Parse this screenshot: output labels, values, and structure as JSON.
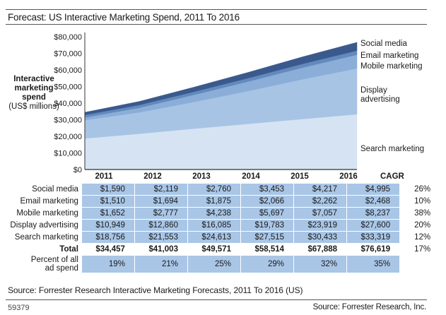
{
  "title": "Forecast: US Interactive Marketing Spend, 2011 To 2016",
  "y_axis_label": {
    "line1": "Interactive",
    "line2": "marketing",
    "line3": "spend",
    "line4": "(US$ millions)"
  },
  "chart_data": {
    "type": "area",
    "stacked": true,
    "title": "Forecast: US Interactive Marketing Spend, 2011 To 2016",
    "xlabel": "",
    "ylabel": "Interactive marketing spend (US$ millions)",
    "x": [
      "2011",
      "2012",
      "2013",
      "2014",
      "2015",
      "2016"
    ],
    "ylim": [
      0,
      80000
    ],
    "yticks": [
      0,
      10000,
      20000,
      30000,
      40000,
      50000,
      60000,
      70000,
      80000
    ],
    "ytick_labels": [
      "$0",
      "$10,000",
      "$20,000",
      "$30,000",
      "$40,000",
      "$50,000",
      "$60,000",
      "$70,000",
      "$80,000"
    ],
    "grid": false,
    "legend": "right",
    "series": [
      {
        "name": "Search marketing",
        "values": [
          18756,
          21553,
          24613,
          27515,
          30433,
          33319
        ],
        "color": "#d5e3f3"
      },
      {
        "name": "Display advertising",
        "values": [
          10949,
          12860,
          16085,
          19783,
          23919,
          27600
        ],
        "color": "#a8c4e4"
      },
      {
        "name": "Mobile marketing",
        "values": [
          1652,
          2777,
          4238,
          5697,
          7057,
          8237
        ],
        "color": "#8aaed8"
      },
      {
        "name": "Email marketing",
        "values": [
          1510,
          1694,
          1875,
          2066,
          2262,
          2468
        ],
        "color": "#6489bd"
      },
      {
        "name": "Social media",
        "values": [
          1590,
          2119,
          2760,
          3453,
          4217,
          4995
        ],
        "color": "#3a5a8e"
      }
    ]
  },
  "legend_labels": {
    "social": "Social media",
    "email": "Email marketing",
    "mobile": "Mobile marketing",
    "display1": "Display",
    "display2": "advertising",
    "search": "Search marketing"
  },
  "table": {
    "years": [
      "2011",
      "2012",
      "2013",
      "2014",
      "2015",
      "2016"
    ],
    "cagr_header": "CAGR",
    "rows": [
      {
        "label": "Social media",
        "values": [
          "$1,590",
          "$2,119",
          "$2,760",
          "$3,453",
          "$4,217",
          "$4,995"
        ],
        "cagr": "26%"
      },
      {
        "label": "Email marketing",
        "values": [
          "$1,510",
          "$1,694",
          "$1,875",
          "$2,066",
          "$2,262",
          "$2,468"
        ],
        "cagr": "10%"
      },
      {
        "label": "Mobile marketing",
        "values": [
          "$1,652",
          "$2,777",
          "$4,238",
          "$5,697",
          "$7,057",
          "$8,237"
        ],
        "cagr": "38%"
      },
      {
        "label": "Display advertising",
        "values": [
          "$10,949",
          "$12,860",
          "$16,085",
          "$19,783",
          "$23,919",
          "$27,600"
        ],
        "cagr": "20%"
      },
      {
        "label": "Search marketing",
        "values": [
          "$18,756",
          "$21,553",
          "$24,613",
          "$27,515",
          "$30,433",
          "$33,319"
        ],
        "cagr": "12%"
      }
    ],
    "total": {
      "label": "Total",
      "values": [
        "$34,457",
        "$41,003",
        "$49,571",
        "$58,514",
        "$67,888",
        "$76,619"
      ],
      "cagr": "17%"
    },
    "percent": {
      "label1": "Percent of all",
      "label2": "ad spend",
      "values": [
        "19%",
        "21%",
        "25%",
        "29%",
        "32%",
        "35%"
      ]
    }
  },
  "source": "Source: Forrester Research Interactive Marketing Forecasts, 2011 To 2016 (US)",
  "figure_id": "59379",
  "credit": "Source: Forrester Research, Inc."
}
